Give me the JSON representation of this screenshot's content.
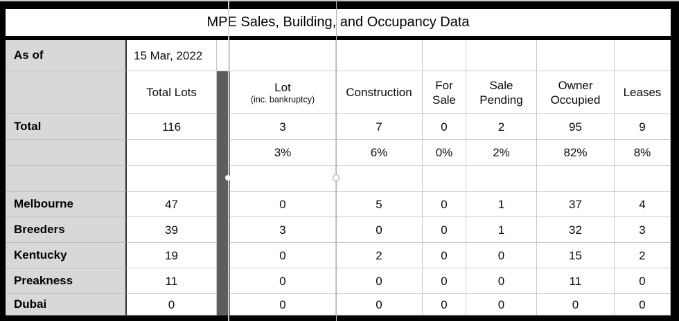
{
  "title": "MPE Sales, Building, and Occupancy Data",
  "as_of": {
    "label": "As of",
    "value": "15 Mar, 2022"
  },
  "columns": {
    "total_lots": "Total Lots",
    "lot": "Lot",
    "lot_sub": "(inc. bankruptcy)",
    "construction": "Construction",
    "for_sale": "For\nSale",
    "sale_pending": "Sale\nPending",
    "owner_occupied": "Owner\nOccupied",
    "leases": "Leases"
  },
  "total_row": {
    "label": "Total",
    "values": [
      "116",
      "3",
      "7",
      "0",
      "2",
      "95",
      "9"
    ]
  },
  "percent_row": {
    "values": [
      "3%",
      "6%",
      "0%",
      "2%",
      "82%",
      "8%"
    ]
  },
  "rows": [
    {
      "label": "Melbourne",
      "values": [
        "47",
        "0",
        "5",
        "0",
        "1",
        "37",
        "4"
      ]
    },
    {
      "label": "Breeders",
      "values": [
        "39",
        "3",
        "0",
        "0",
        "1",
        "32",
        "3"
      ]
    },
    {
      "label": "Kentucky",
      "values": [
        "19",
        "0",
        "2",
        "0",
        "0",
        "15",
        "2"
      ]
    },
    {
      "label": "Preakness",
      "values": [
        "11",
        "0",
        "0",
        "0",
        "0",
        "11",
        "0"
      ]
    },
    {
      "label": "Dubai",
      "values": [
        "0",
        "0",
        "0",
        "0",
        "0",
        "0",
        "0"
      ]
    }
  ],
  "colors": {
    "frame": "#000000",
    "row_header_bg": "#d8d8d8",
    "separator_bar": "#5e5e5e",
    "gridline": "#c9c9c9"
  }
}
